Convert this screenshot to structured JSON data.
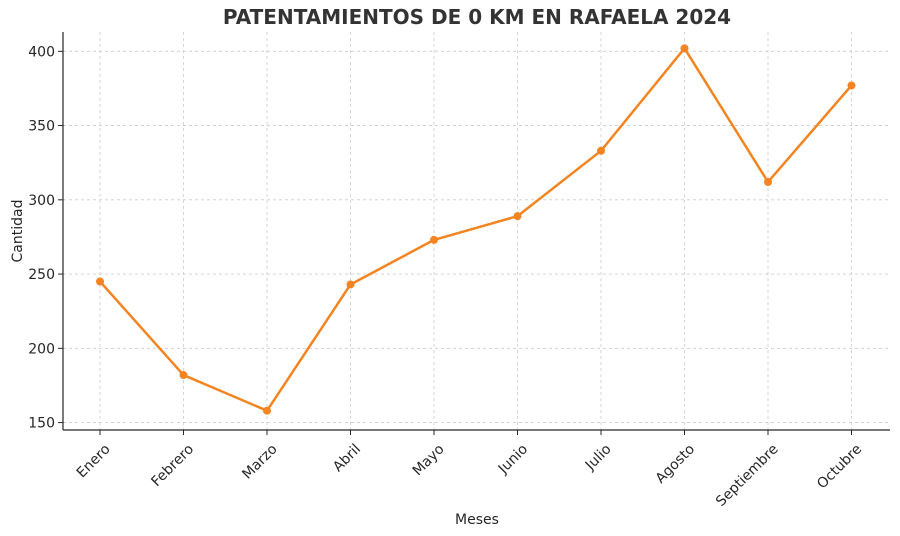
{
  "chart_data": {
    "type": "line",
    "title": "PATENTAMIENTOS DE 0 KM EN RAFAELA 2024",
    "xlabel": "Meses",
    "ylabel": "Cantidad",
    "categories": [
      "Enero",
      "Febrero",
      "Marzo",
      "Abril",
      "Mayo",
      "Junio",
      "Julio",
      "Agosto",
      "Septiembre",
      "Octubre"
    ],
    "series": [
      {
        "values": [
          245,
          182,
          158,
          243,
          273,
          289,
          333,
          402,
          312,
          377
        ]
      }
    ],
    "ylim": [
      145,
      413
    ],
    "yticks": [
      150,
      200,
      250,
      300,
      350,
      400
    ],
    "grid": true,
    "colors": {
      "line": "#f28522",
      "axis": "#262626",
      "grid": "#cccccc"
    }
  }
}
